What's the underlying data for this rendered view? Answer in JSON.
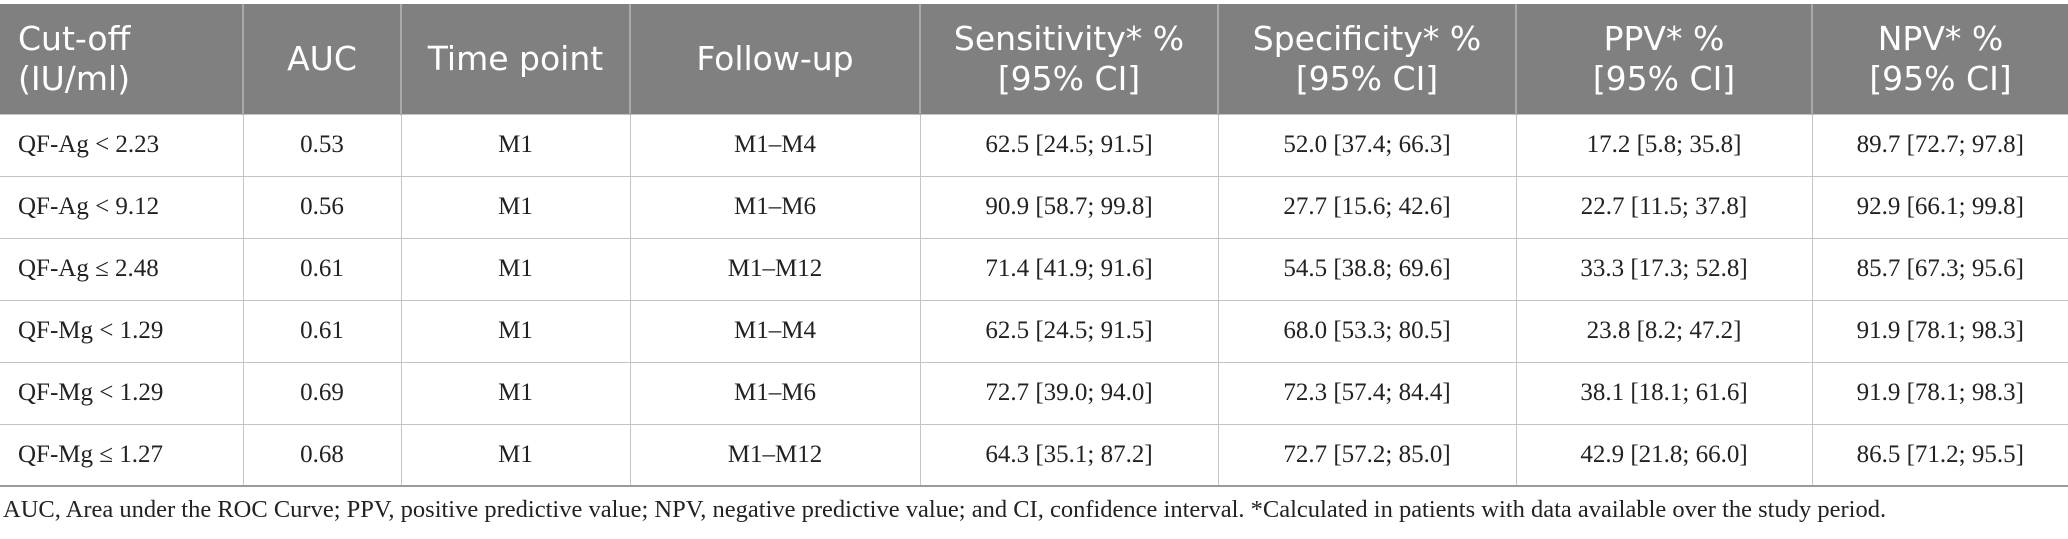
{
  "table": {
    "headers": [
      "Cut-off\n(IU/ml)",
      "AUC",
      "Time point",
      "Follow-up",
      "Sensitivity* %\n[95% CI]",
      "Specificity* %\n[95% CI]",
      "PPV* %\n[95% CI]",
      "NPV* %\n[95% CI]"
    ],
    "rows": [
      [
        "QF-Ag < 2.23",
        "0.53",
        "M1",
        "M1–M4",
        "62.5 [24.5; 91.5]",
        "52.0 [37.4; 66.3]",
        "17.2 [5.8; 35.8]",
        "89.7 [72.7; 97.8]"
      ],
      [
        "QF-Ag < 9.12",
        "0.56",
        "M1",
        "M1–M6",
        "90.9 [58.7; 99.8]",
        "27.7 [15.6; 42.6]",
        "22.7 [11.5; 37.8]",
        "92.9 [66.1; 99.8]"
      ],
      [
        "QF-Ag ≤ 2.48",
        "0.61",
        "M1",
        "M1–M12",
        "71.4 [41.9; 91.6]",
        "54.5 [38.8; 69.6]",
        "33.3 [17.3; 52.8]",
        "85.7 [67.3; 95.6]"
      ],
      [
        "QF-Mg < 1.29",
        "0.61",
        "M1",
        "M1–M4",
        "62.5 [24.5; 91.5]",
        "68.0 [53.3; 80.5]",
        "23.8 [8.2; 47.2]",
        "91.9 [78.1; 98.3]"
      ],
      [
        "QF-Mg < 1.29",
        "0.69",
        "M1",
        "M1–M6",
        "72.7 [39.0; 94.0]",
        "72.3 [57.4; 84.4]",
        "38.1 [18.1; 61.6]",
        "91.9 [78.1; 98.3]"
      ],
      [
        "QF-Mg ≤ 1.27",
        "0.68",
        "M1",
        "M1–M12",
        "64.3 [35.1; 87.2]",
        "72.7 [57.2; 85.0]",
        "42.9 [21.8; 66.0]",
        "86.5 [71.2; 95.5]"
      ]
    ]
  },
  "footnote": "AUC, Area under the ROC Curve; PPV, positive predictive value; NPV, negative predictive value; and CI, confidence interval. *Calculated in patients with data available over the study period.",
  "colors": {
    "header_bg": "#808080",
    "header_text": "#ffffff",
    "grid_line": "#c4c4c4"
  }
}
